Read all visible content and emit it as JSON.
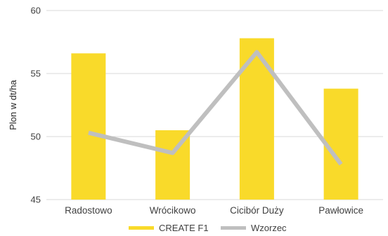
{
  "chart_data": {
    "type": "bar",
    "categories": [
      "Radostowo",
      "Wrócikowo",
      "Cicibór Duży",
      "Pawłowice"
    ],
    "ylabel": "Plon w dt/ha",
    "ylim": [
      45,
      60
    ],
    "yticks": [
      45,
      50,
      55,
      60
    ],
    "grid": true,
    "legend_position": "bottom",
    "series": [
      {
        "name": "CREATE F1",
        "kind": "bar",
        "color": "#f9da2a",
        "values": [
          56.6,
          50.5,
          57.8,
          53.8
        ]
      },
      {
        "name": "Wzorzec",
        "kind": "line",
        "color": "#bfbfbf",
        "values": [
          50.3,
          48.7,
          56.7,
          47.8
        ]
      }
    ]
  }
}
